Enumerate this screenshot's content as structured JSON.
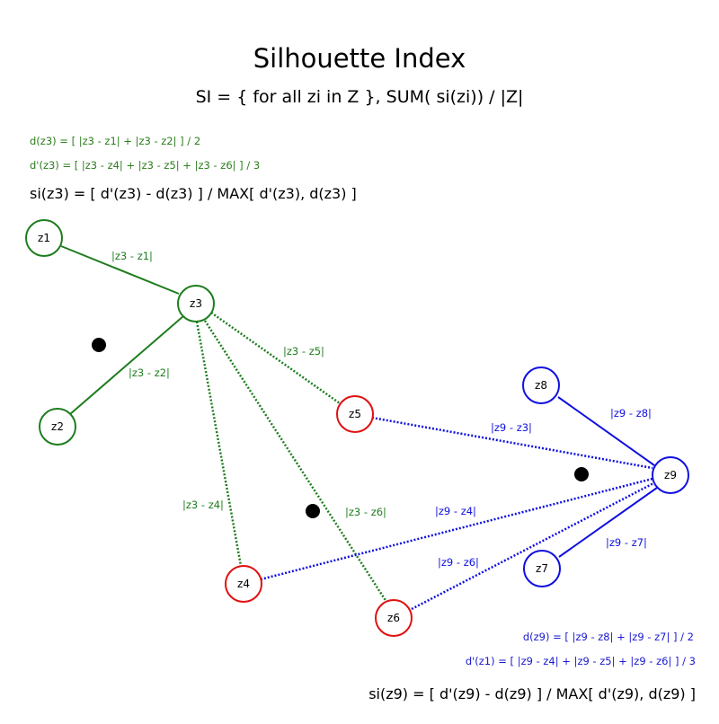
{
  "title": "Silhouette Index",
  "subtitle": "SI = { for all zi in Z }, SUM( si(zi)) / |Z|",
  "formulas": {
    "d_z3": "d(z3) = [ |z3 - z1| + |z3 - z2| ] / 2",
    "dprime_z3": "d'(z3) = [ |z3 - z4| + |z3 - z5| + |z3 - z6| ] / 3",
    "si_z3": "si(z3) = [ d'(z3) - d(z3) ] / MAX[ d'(z3), d(z3) ]",
    "d_z9": "d(z9) = [  |z9 - z8| + |z9 - z7| ] / 2",
    "dprime_z1": "d'(z1) = [ |z9 - z4| + |z9 - z5| + |z9 - z6| ] / 3",
    "si_z9": "si(z9) = [ d'(z9) - d(z9) ] / MAX[ d'(z9), d(z9) ]"
  },
  "colors": {
    "green": "#1e7d1e",
    "red": "#e01010",
    "blue": "#1010e0",
    "black": "#000000"
  },
  "nodes": {
    "z1": {
      "label": "z1",
      "cluster": "green"
    },
    "z2": {
      "label": "z2",
      "cluster": "green"
    },
    "z3": {
      "label": "z3",
      "cluster": "green"
    },
    "z4": {
      "label": "z4",
      "cluster": "red"
    },
    "z5": {
      "label": "z5",
      "cluster": "red"
    },
    "z6": {
      "label": "z6",
      "cluster": "red"
    },
    "z7": {
      "label": "z7",
      "cluster": "blue"
    },
    "z8": {
      "label": "z8",
      "cluster": "blue"
    },
    "z9": {
      "label": "z9",
      "cluster": "blue"
    }
  },
  "edges": {
    "z3_z1": {
      "label": "|z3 - z1|",
      "style": "solid",
      "color": "green"
    },
    "z3_z2": {
      "label": "|z3 - z2|",
      "style": "solid",
      "color": "green"
    },
    "z3_z5": {
      "label": "|z3 - z5|",
      "style": "dotted",
      "color": "green"
    },
    "z3_z4": {
      "label": "|z3 - z4|",
      "style": "dotted",
      "color": "green"
    },
    "z3_z6": {
      "label": "|z3 - z6|",
      "style": "dotted",
      "color": "green"
    },
    "z9_z8": {
      "label": "|z9 - z8|",
      "style": "solid",
      "color": "blue"
    },
    "z9_z7": {
      "label": "|z9 - z7|",
      "style": "solid",
      "color": "blue"
    },
    "z9_z3": {
      "label": "|z9 - z3|",
      "style": "dotted",
      "color": "blue"
    },
    "z9_z4": {
      "label": "|z9 - z4|",
      "style": "dotted",
      "color": "blue"
    },
    "z9_z6": {
      "label": "|z9 - z6|",
      "style": "dotted",
      "color": "blue"
    }
  }
}
